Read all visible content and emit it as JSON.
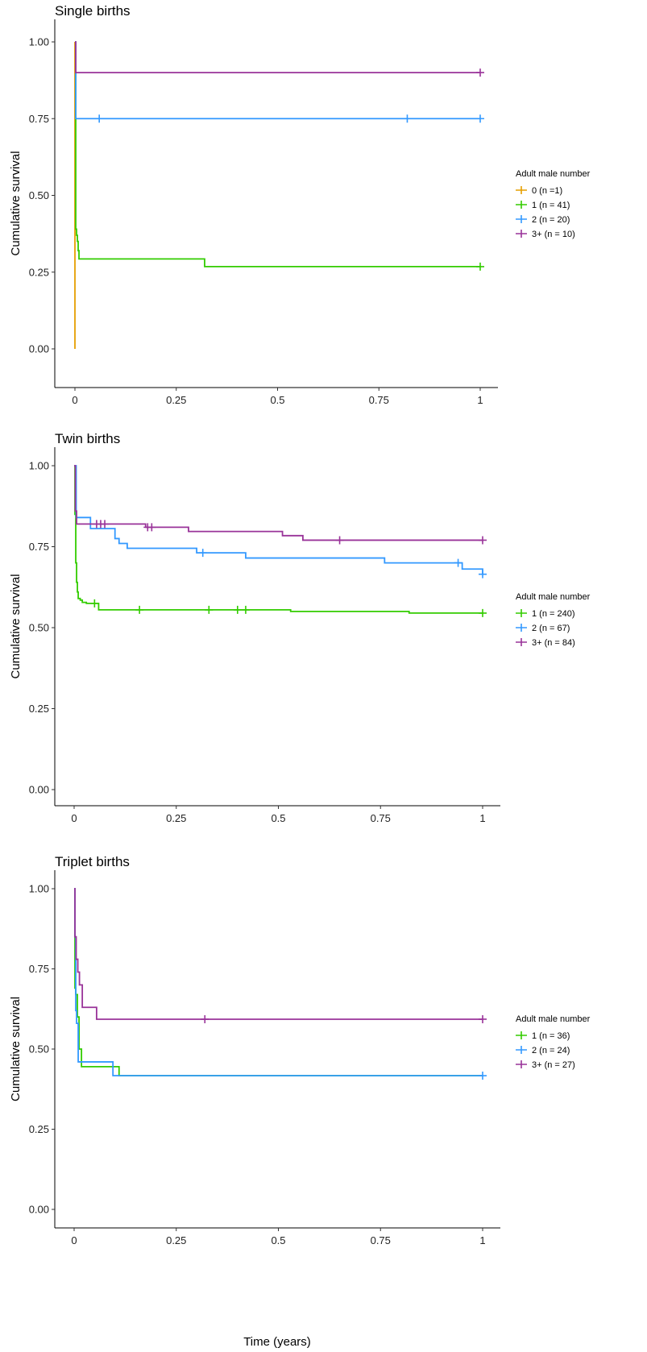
{
  "colors": {
    "0": "#e69f00",
    "1": "#33cc00",
    "2": "#3399ff",
    "3+": "#993399"
  },
  "x_label": "Time (years)",
  "chart_data": [
    {
      "type": "line",
      "title": "Single births",
      "ylabel": "Cumulative survival",
      "xlim": [
        0,
        1
      ],
      "ylim": [
        0,
        1
      ],
      "xticks": [
        "0",
        "0.25",
        "0.5",
        "0.75",
        "1"
      ],
      "yticks": [
        "0.00",
        "0.25",
        "0.50",
        "0.75",
        "1.00"
      ],
      "legend_title": "Adult male number",
      "legend_position": "right",
      "series": [
        {
          "name": "0 (n =1)",
          "key": "0",
          "x": [
            0,
            0
          ],
          "y": [
            1,
            0
          ],
          "censor": []
        },
        {
          "name": "1 (n = 41)",
          "key": "1",
          "x": [
            0,
            0.002,
            0.004,
            0.006,
            0.008,
            0.01,
            0.32,
            1
          ],
          "y": [
            1,
            0.39,
            0.37,
            0.35,
            0.32,
            0.293,
            0.268,
            0.268
          ],
          "censor": [
            1
          ]
        },
        {
          "name": "2 (n = 20)",
          "key": "2",
          "x": [
            0,
            0.002,
            1
          ],
          "y": [
            1,
            0.75,
            0.75
          ],
          "censor": [
            0.06,
            0.82,
            1
          ]
        },
        {
          "name": "3+ (n = 10)",
          "key": "3+",
          "x": [
            0,
            0.002,
            1
          ],
          "y": [
            1,
            0.9,
            0.9
          ],
          "censor": [
            1
          ]
        }
      ]
    },
    {
      "type": "line",
      "title": "Twin births",
      "ylabel": "Cumulative survival",
      "xlim": [
        0,
        1
      ],
      "ylim": [
        0,
        1
      ],
      "xticks": [
        "0",
        "0.25",
        "0.5",
        "0.75",
        "1"
      ],
      "yticks": [
        "0.00",
        "0.25",
        "0.50",
        "0.75",
        "1.00"
      ],
      "legend_title": "Adult male number",
      "legend_position": "right",
      "series": [
        {
          "name": "1 (n = 240)",
          "key": "1",
          "x": [
            0,
            0.002,
            0.004,
            0.006,
            0.008,
            0.01,
            0.015,
            0.02,
            0.03,
            0.06,
            0.53,
            0.82,
            1
          ],
          "y": [
            1,
            0.85,
            0.7,
            0.64,
            0.61,
            0.59,
            0.585,
            0.578,
            0.575,
            0.555,
            0.55,
            0.545,
            0.545
          ],
          "censor": [
            0.05,
            0.16,
            0.33,
            0.4,
            0.42,
            1
          ]
        },
        {
          "name": "2 (n = 67)",
          "key": "2",
          "x": [
            0,
            0.005,
            0.04,
            0.1,
            0.11,
            0.13,
            0.3,
            0.42,
            0.76,
            0.95,
            1
          ],
          "y": [
            1,
            0.84,
            0.806,
            0.775,
            0.76,
            0.745,
            0.731,
            0.715,
            0.7,
            0.681,
            0.665
          ],
          "censor": [
            0.315,
            0.94,
            1
          ]
        },
        {
          "name": "3+ (n = 84)",
          "key": "3+",
          "x": [
            0,
            0.003,
            0.006,
            0.175,
            0.28,
            0.51,
            0.56,
            1
          ],
          "y": [
            1,
            0.86,
            0.82,
            0.81,
            0.797,
            0.784,
            0.77,
            0.77
          ],
          "censor": [
            0.055,
            0.065,
            0.075,
            0.18,
            0.19,
            0.65,
            1
          ]
        }
      ]
    },
    {
      "type": "line",
      "title": "Triplet births",
      "ylabel": "Cumulative survival",
      "xlim": [
        0,
        1
      ],
      "ylim": [
        0,
        1
      ],
      "xticks": [
        "0",
        "0.25",
        "0.5",
        "0.75",
        "1"
      ],
      "yticks": [
        "0.00",
        "0.25",
        "0.50",
        "0.75",
        "1.00"
      ],
      "legend_title": "Adult male number",
      "legend_position": "right",
      "series": [
        {
          "name": "1 (n = 36)",
          "key": "1",
          "x": [
            0,
            0.002,
            0.004,
            0.008,
            0.012,
            0.018,
            0.1,
            0.11,
            1
          ],
          "y": [
            1,
            0.69,
            0.67,
            0.6,
            0.5,
            0.445,
            0.445,
            0.417,
            0.417
          ],
          "censor": []
        },
        {
          "name": "2 (n = 24)",
          "key": "2",
          "x": [
            0,
            0.002,
            0.004,
            0.006,
            0.01,
            0.095,
            1
          ],
          "y": [
            1,
            0.85,
            0.62,
            0.58,
            0.46,
            0.417,
            0.417
          ],
          "censor": [
            1
          ]
        },
        {
          "name": "3+ (n = 27)",
          "key": "3+",
          "x": [
            0,
            0.002,
            0.005,
            0.009,
            0.013,
            0.02,
            0.055,
            1
          ],
          "y": [
            1,
            0.85,
            0.78,
            0.74,
            0.7,
            0.63,
            0.593,
            0.593
          ],
          "censor": [
            0.32,
            1
          ]
        }
      ]
    }
  ]
}
